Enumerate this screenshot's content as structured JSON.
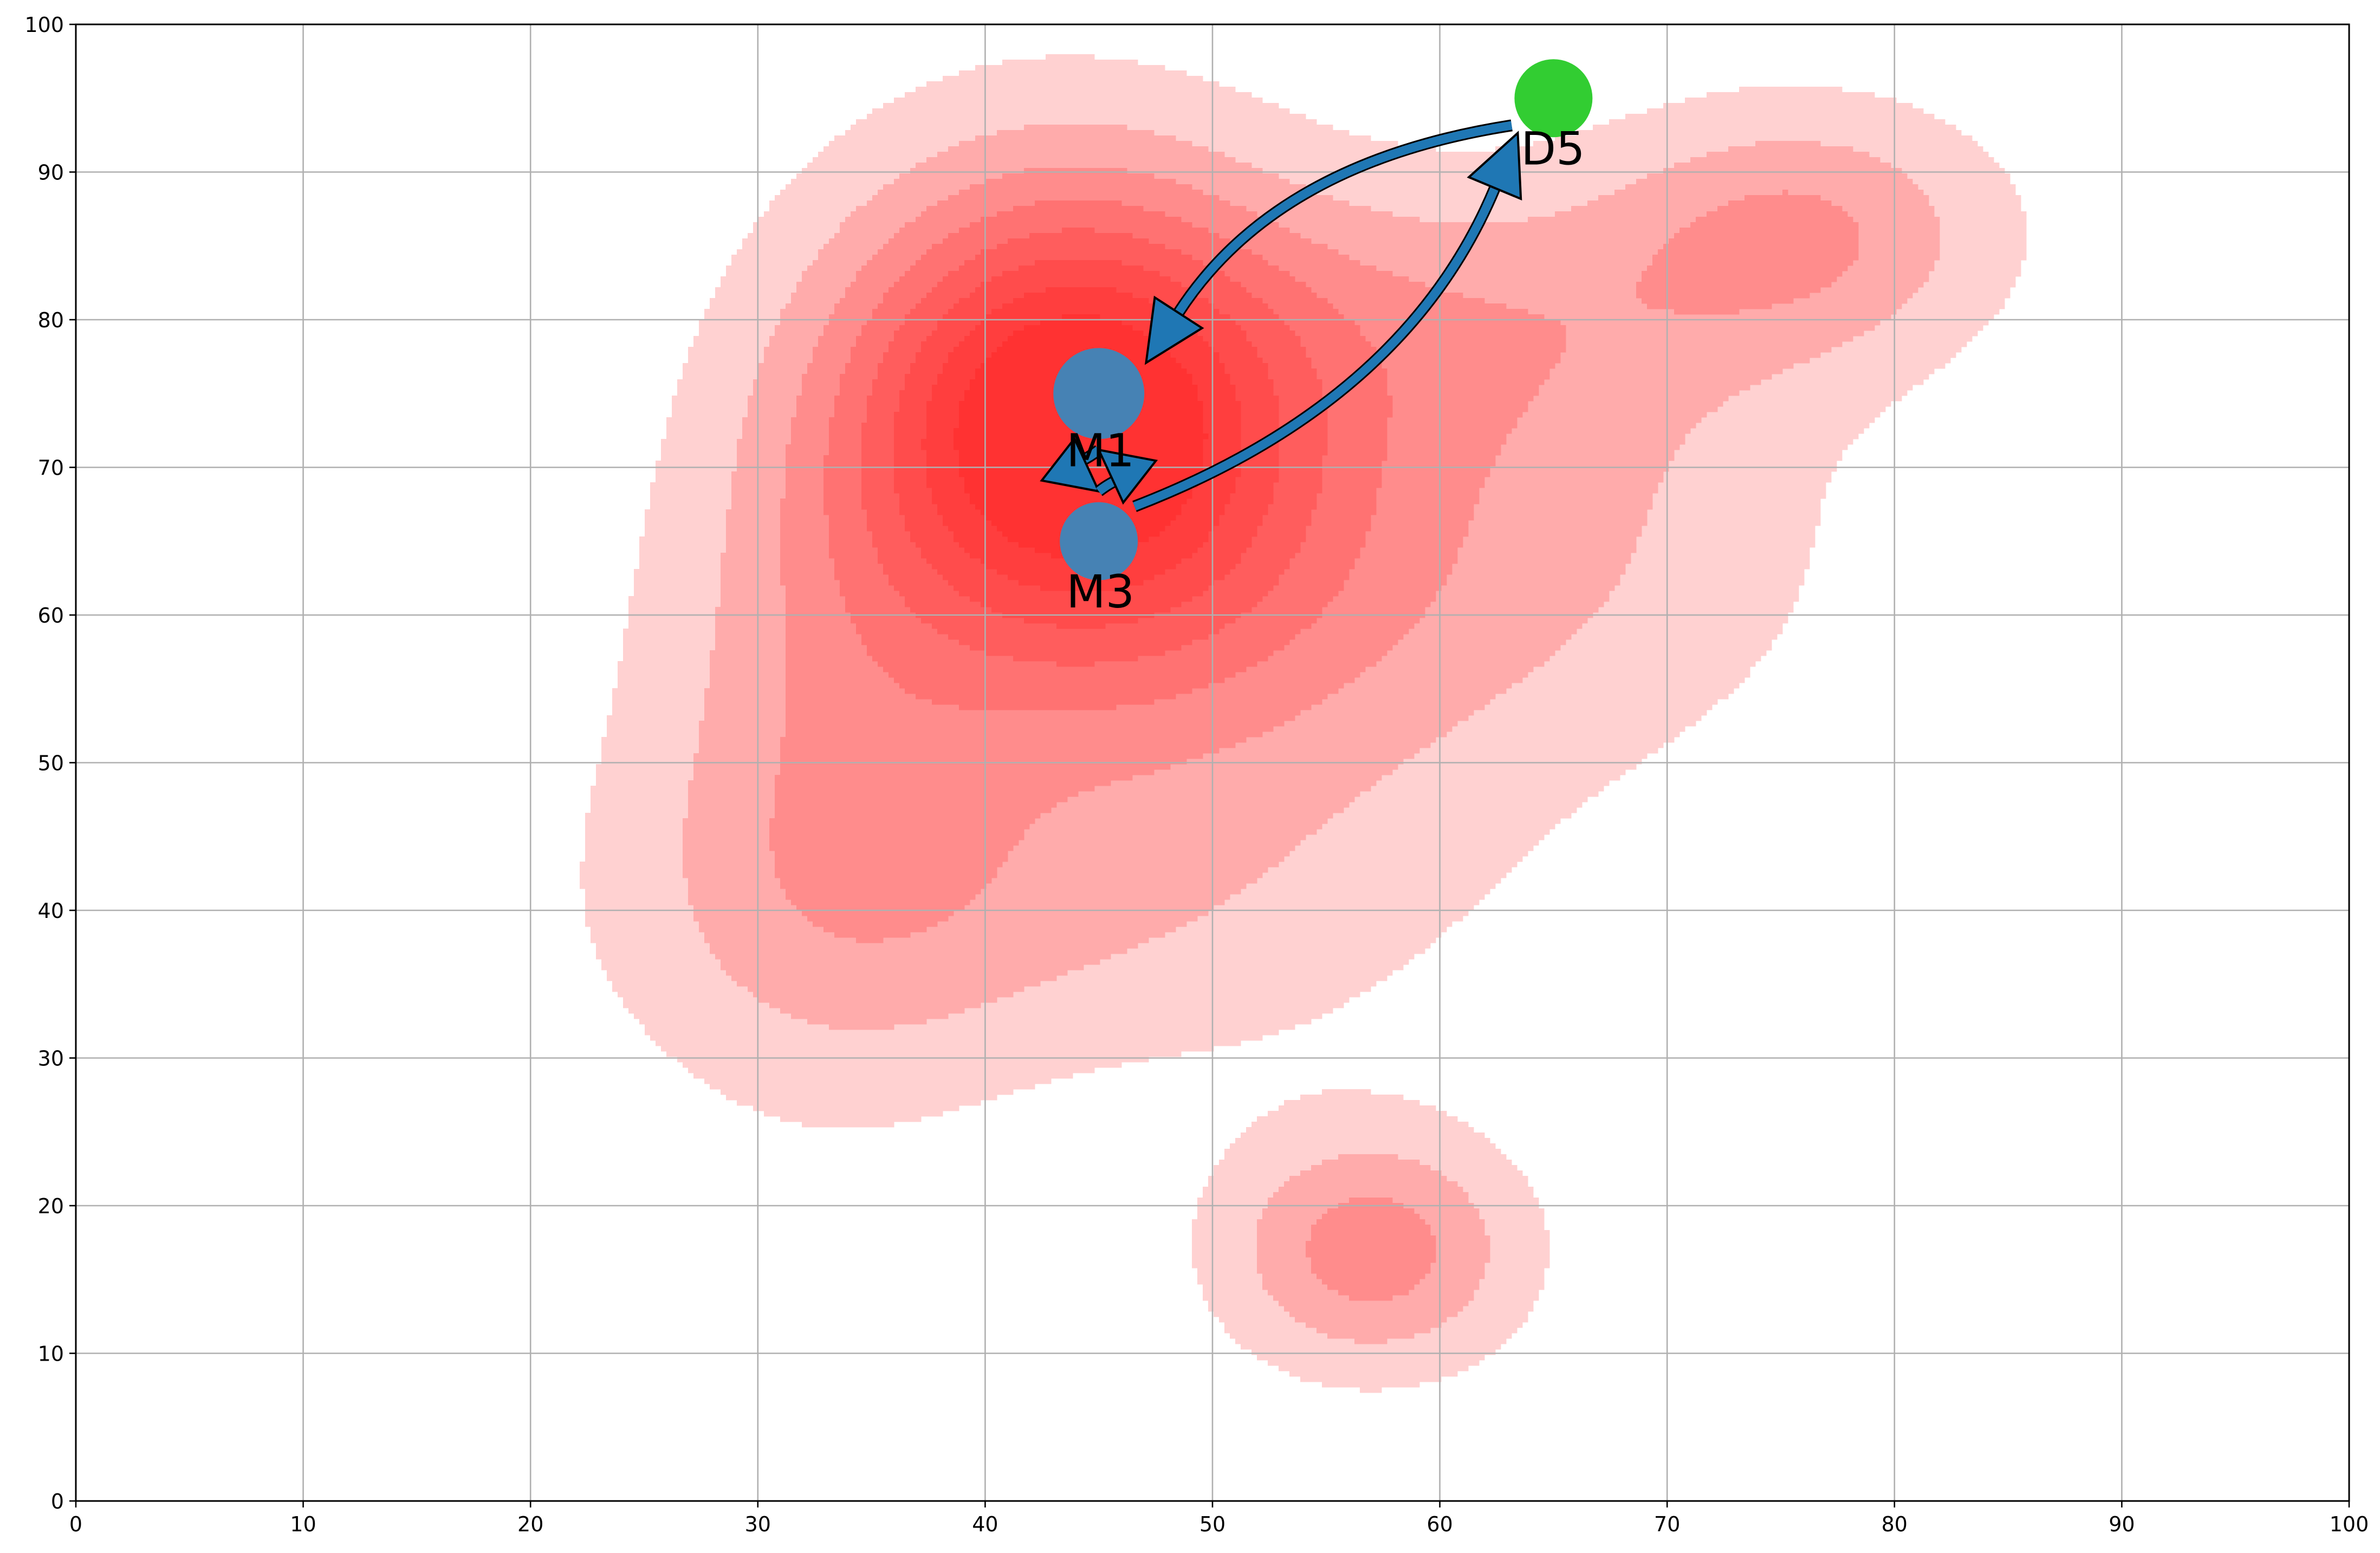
{
  "chart_data": {
    "type": "scatter",
    "title": "",
    "xlabel": "",
    "ylabel": "",
    "xlim": [
      0,
      100
    ],
    "ylim": [
      0,
      100
    ],
    "x_ticks": [
      0,
      10,
      20,
      30,
      40,
      50,
      60,
      70,
      80,
      90,
      100
    ],
    "y_ticks": [
      0,
      10,
      20,
      30,
      40,
      50,
      60,
      70,
      80,
      90,
      100
    ],
    "grid": true,
    "legend": "none",
    "background": {
      "type": "density-contour",
      "color": "#ff0000",
      "levels": 8
    },
    "points": [
      {
        "label": "M1",
        "x": 45,
        "y": 75,
        "color": "#4682b4",
        "size": "large"
      },
      {
        "label": "M3",
        "x": 45,
        "y": 65,
        "color": "#4682b4",
        "size": "medium"
      },
      {
        "label": "D5",
        "x": 65,
        "y": 95,
        "color": "#32cd32",
        "size": "medium"
      }
    ],
    "arrows": [
      {
        "from": "D5",
        "to": "M1",
        "color": "#1f77b4"
      },
      {
        "from": "M3",
        "to": "D5",
        "color": "#1f77b4"
      },
      {
        "from": "M1",
        "to": "M3",
        "color": "#1f77b4"
      },
      {
        "from": "M3",
        "to": "M1",
        "color": "#1f77b4"
      }
    ]
  }
}
